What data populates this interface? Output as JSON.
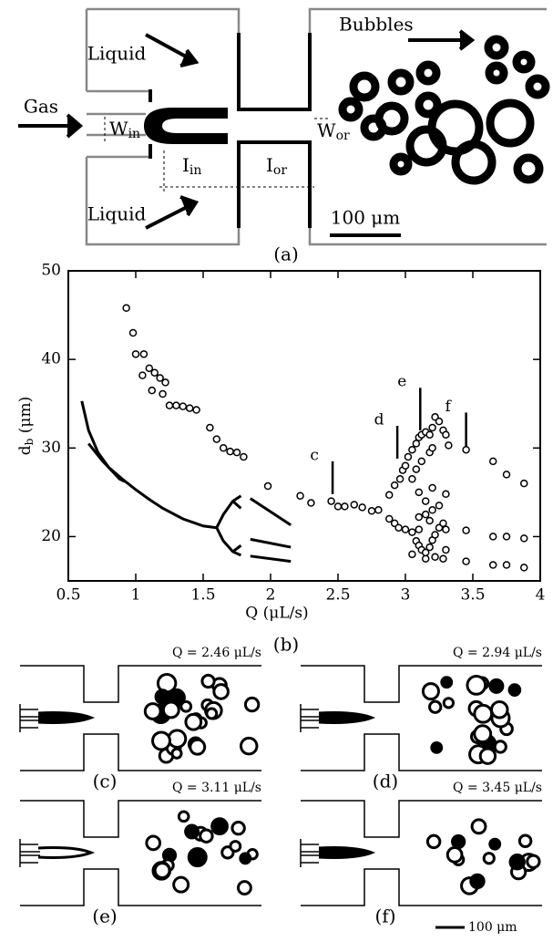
{
  "panel_a": {
    "liquid_top": "Liquid",
    "gas": "Gas",
    "w_in": "W",
    "w_in_sub": "in",
    "liquid_bottom": "Liquid",
    "l_in": "I",
    "l_in_sub": "in",
    "l_or": "I",
    "l_or_sub": "or",
    "w_or": "W",
    "w_or_sub": "or",
    "bubbles": "Bubbles",
    "scale": "100 μm",
    "caption": "(a)"
  },
  "chart_data": {
    "type": "scatter",
    "caption": "(b)",
    "xlabel": "Q (μL/s)",
    "ylabel": "d",
    "ylabel_sub": "b",
    "ylabel_unit": "(μm)",
    "xlim": [
      0.5,
      4
    ],
    "xticks": [
      0.5,
      1,
      1.5,
      2,
      2.5,
      3,
      3.5,
      4
    ],
    "ylim": [
      15,
      50
    ],
    "yticks": [
      20,
      30,
      40,
      50
    ],
    "color": "#000000",
    "x": [
      0.93,
      0.98,
      1.0,
      1.06,
      1.05,
      1.1,
      1.12,
      1.14,
      1.18,
      1.2,
      1.22,
      1.25,
      1.3,
      1.35,
      1.4,
      1.45,
      1.55,
      1.6,
      1.65,
      1.7,
      1.75,
      1.8,
      1.98,
      2.22,
      2.3,
      2.45,
      2.5,
      2.55,
      2.62,
      2.68,
      2.75,
      2.8,
      2.88,
      2.92,
      2.96,
      2.98,
      3.0,
      3.02,
      3.05,
      3.08,
      3.1,
      3.12,
      3.15,
      3.18,
      3.2,
      3.22,
      3.25,
      3.28,
      3.3,
      3.32,
      3.45,
      3.65,
      3.75,
      3.88,
      3.05,
      3.08,
      3.12,
      3.18,
      3.2,
      2.88,
      2.92,
      2.95,
      3.0,
      3.05,
      3.08,
      3.1,
      3.12,
      3.15,
      3.18,
      3.2,
      3.22,
      3.25,
      3.28,
      3.3,
      3.15,
      3.2,
      3.25,
      3.1,
      3.05,
      3.15,
      3.22,
      3.28,
      3.3,
      3.1,
      3.18,
      3.45,
      3.45,
      3.65,
      3.75,
      3.88,
      3.65,
      3.75,
      3.88,
      3.1,
      3.2,
      3.3,
      3.15
    ],
    "values": [
      45.8,
      43,
      40.6,
      40.6,
      38.2,
      39,
      36.5,
      38.5,
      37.9,
      36.1,
      37.4,
      34.8,
      34.8,
      34.7,
      34.5,
      34.3,
      32.3,
      31,
      30,
      29.6,
      29.5,
      29,
      25.7,
      24.6,
      23.8,
      24,
      23.4,
      23.4,
      23.6,
      23.3,
      22.9,
      23,
      24.7,
      25.8,
      26.5,
      27.5,
      28,
      29,
      29.8,
      30.5,
      31.2,
      31.5,
      31.8,
      31.5,
      32.3,
      33.5,
      33,
      32,
      31.5,
      30.3,
      29.8,
      28.5,
      27,
      26,
      26.5,
      27.6,
      28.5,
      29.5,
      30,
      22,
      21.5,
      21,
      20.8,
      20.5,
      19.5,
      19,
      18.5,
      18.2,
      18.8,
      19.6,
      20.2,
      21,
      21.5,
      20.8,
      22.5,
      23,
      23.5,
      22.2,
      18,
      17.5,
      17.7,
      17.5,
      18.5,
      20.8,
      21.8,
      20.7,
      17.2,
      20,
      20,
      19.8,
      16.8,
      16.8,
      16.5,
      25,
      25.5,
      24.8,
      24
    ],
    "lines": [
      {
        "x": [
          0.6,
          0.65,
          0.72,
          0.8,
          0.9,
          1.0,
          1.1,
          1.2,
          1.35,
          1.5,
          1.6
        ],
        "values": [
          35.3,
          32,
          29.5,
          27.8,
          26.5,
          25.3,
          24.2,
          23.2,
          22,
          21.2,
          21
        ]
      },
      {
        "x": [
          0.65,
          0.75,
          0.88,
          0.92
        ],
        "values": [
          30.5,
          28.6,
          26.5,
          26.2
        ]
      },
      {
        "x": [
          1.6,
          1.65,
          1.72,
          1.78
        ],
        "values": [
          21,
          22.5,
          24,
          24.6
        ]
      },
      {
        "x": [
          1.6,
          1.65,
          1.72,
          1.78
        ],
        "values": [
          21,
          19.5,
          18.3,
          17.9
        ]
      },
      {
        "x": [
          1.72,
          1.78
        ],
        "values": [
          24,
          23.2
        ]
      },
      {
        "x": [
          1.72,
          1.78
        ],
        "values": [
          18.3,
          19
        ]
      },
      {
        "x": [
          1.85,
          2.15
        ],
        "values": [
          24.3,
          21.3
        ]
      },
      {
        "x": [
          1.85,
          2.15
        ],
        "values": [
          19.7,
          18.8
        ]
      },
      {
        "x": [
          1.85,
          2.15
        ],
        "values": [
          17.8,
          17.2
        ]
      }
    ],
    "annotations": [
      {
        "label": "c",
        "x": 2.46,
        "y": [
          24.8,
          28.5
        ]
      },
      {
        "label": "d",
        "x": 2.94,
        "y": [
          28.8,
          32.5
        ]
      },
      {
        "label": "e",
        "x": 3.11,
        "y": [
          32,
          36.8
        ]
      },
      {
        "label": "f",
        "x": 3.45,
        "y": [
          30.2,
          34
        ]
      }
    ]
  },
  "panels": [
    {
      "q": "Q = 2.46 μL/s",
      "caption": "(c)"
    },
    {
      "q": "Q = 2.94 μL/s",
      "caption": "(d)"
    },
    {
      "q": "Q = 3.11 μL/s",
      "caption": "(e)"
    },
    {
      "q": "Q = 3.45 μL/s",
      "caption": "(f)"
    }
  ],
  "scale_bottom": "100 μm"
}
